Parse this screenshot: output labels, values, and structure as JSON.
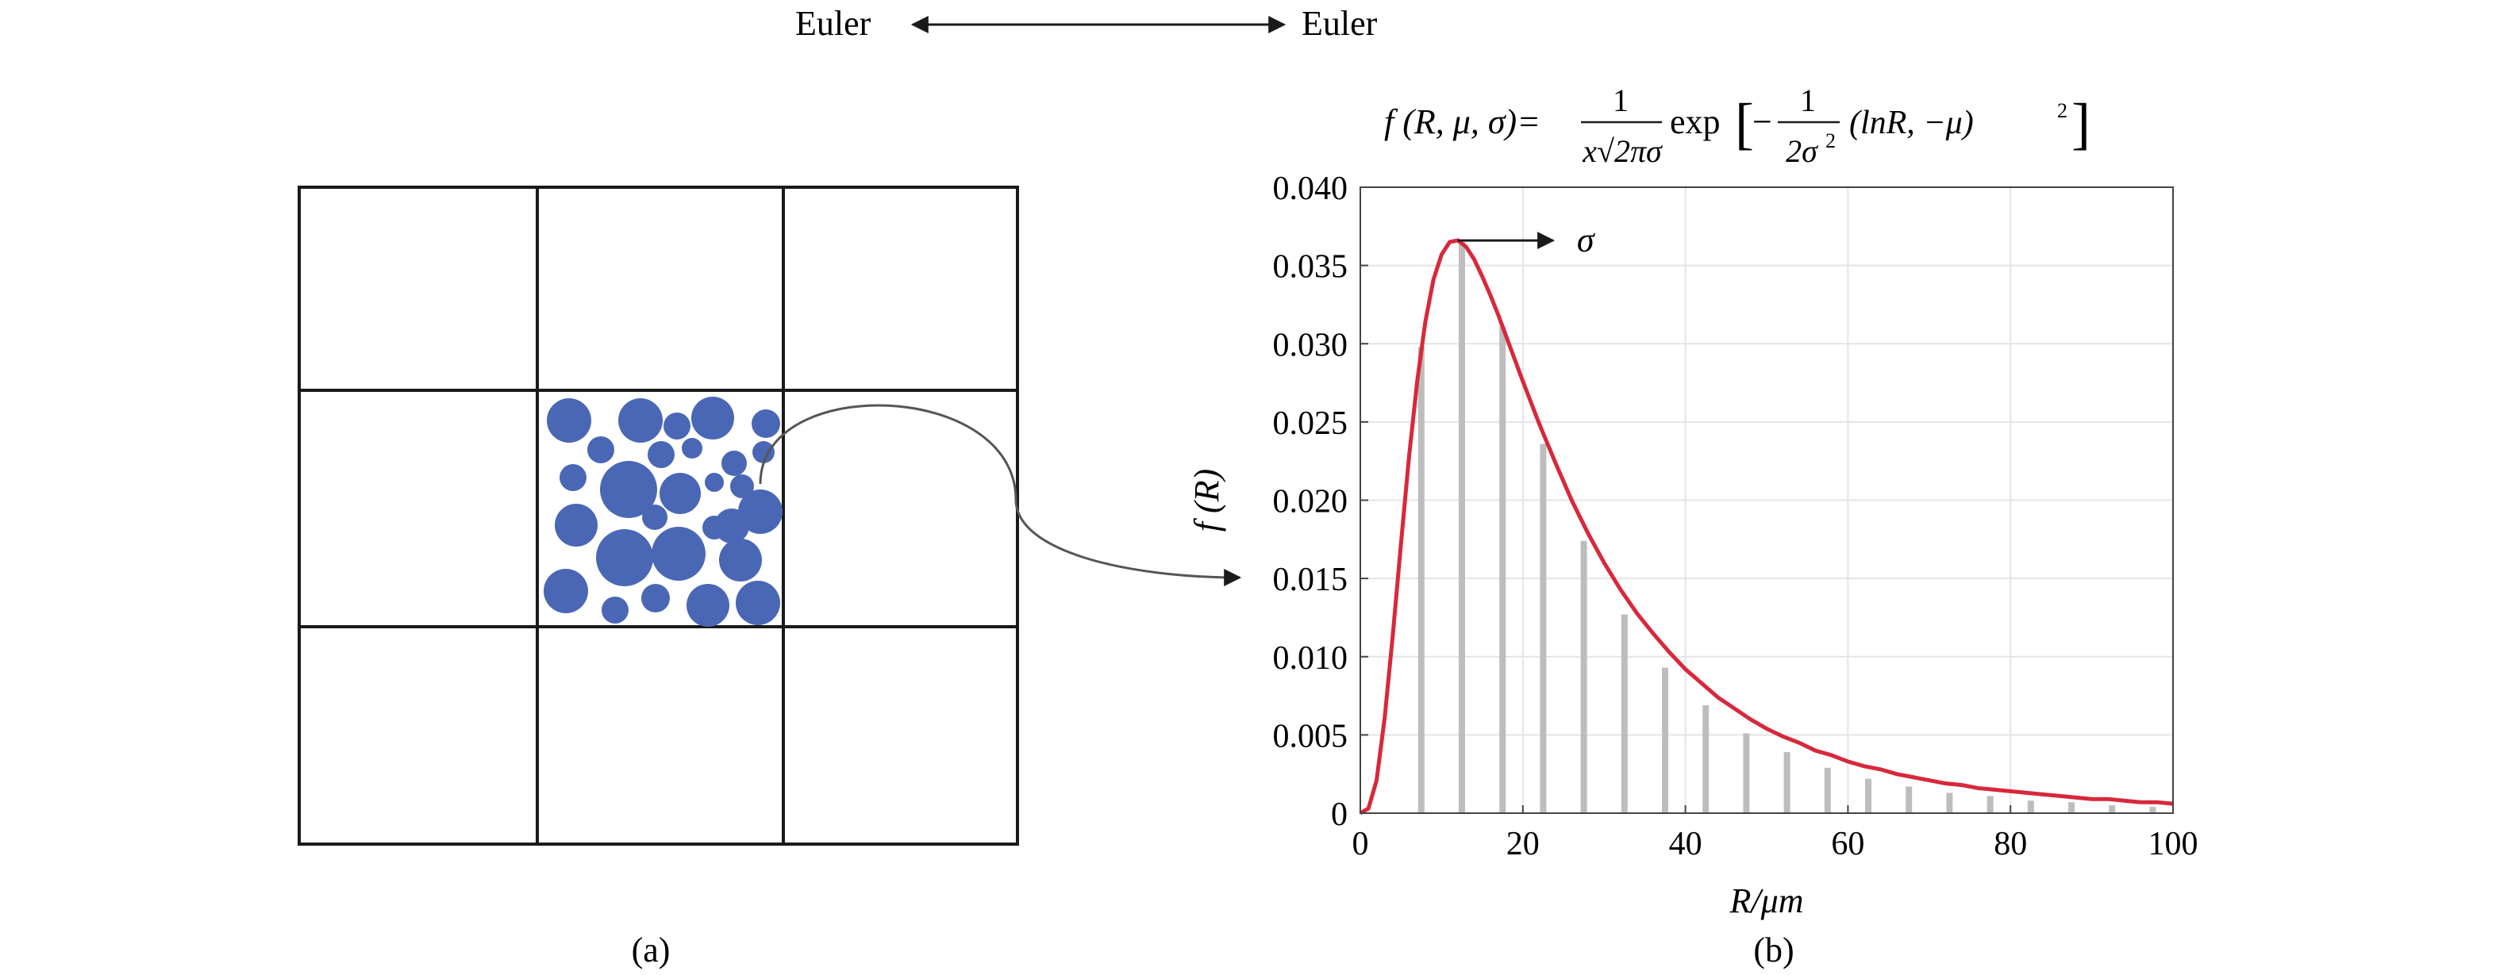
{
  "header": {
    "left_label": "Euler",
    "right_label": "Euler"
  },
  "panel_a": {
    "caption": "(a)",
    "grid": {
      "rows": 3,
      "cols": 3
    },
    "particle_color": "#4a67b5"
  },
  "panel_b": {
    "caption": "(b)",
    "formula": {
      "lhs": "f (R, μ, σ)=",
      "frac1_num": "1",
      "frac1_den": "x√2πσ",
      "exp": "exp",
      "minus": "−",
      "frac2_num": "1",
      "frac2_den": "2σ",
      "frac2_den_sup": "2",
      "tail": "(lnR, −μ)",
      "tail_sup": "2"
    },
    "sigma_label": "σ"
  },
  "chart_data": {
    "type": "line",
    "title": "",
    "xlabel": "R/μm",
    "ylabel": "f (R)",
    "xlim": [
      0,
      100
    ],
    "ylim": [
      0,
      0.04
    ],
    "x_ticks": [
      "0",
      "20",
      "40",
      "60",
      "80",
      "100"
    ],
    "y_ticks": [
      "0",
      "0.005",
      "0.010",
      "0.015",
      "0.020",
      "0.025",
      "0.030",
      "0.035",
      "0.040"
    ],
    "grid": true,
    "series": [
      {
        "color": "#d8283b",
        "x": [
          0,
          1,
          2,
          3,
          4,
          5,
          6,
          7,
          8,
          9,
          10,
          11,
          12,
          13,
          14,
          15,
          16,
          17,
          18,
          19,
          20,
          22,
          24,
          26,
          28,
          30,
          32,
          34,
          36,
          38,
          40,
          42,
          44,
          46,
          48,
          50,
          52,
          54,
          56,
          58,
          60,
          62,
          64,
          66,
          68,
          70,
          72,
          74,
          76,
          78,
          80,
          82,
          84,
          86,
          88,
          90,
          92,
          94,
          96,
          98,
          100
        ],
        "y": [
          0,
          0.0003,
          0.0021,
          0.0061,
          0.0114,
          0.0172,
          0.0228,
          0.0276,
          0.0314,
          0.0341,
          0.0357,
          0.0365,
          0.0366,
          0.0362,
          0.0354,
          0.0343,
          0.0331,
          0.0318,
          0.0304,
          0.029,
          0.0276,
          0.0249,
          0.0224,
          0.02,
          0.0179,
          0.016,
          0.0143,
          0.0128,
          0.0115,
          0.0103,
          0.0092,
          0.0083,
          0.0074,
          0.0067,
          0.006,
          0.0054,
          0.0049,
          0.0045,
          0.004,
          0.0037,
          0.0033,
          0.003,
          0.0028,
          0.0025,
          0.0023,
          0.0021,
          0.0019,
          0.0018,
          0.0016,
          0.0015,
          0.0014,
          0.0013,
          0.0012,
          0.0011,
          0.001,
          0.0009,
          0.0009,
          0.0008,
          0.0007,
          0.0007,
          0.0006
        ]
      }
    ],
    "bars": {
      "color": "#bdbdbd",
      "x": [
        7.5,
        12.5,
        17.5,
        22.5,
        27.5,
        32.5,
        37.5,
        42.5,
        47.5,
        52.5,
        57.5,
        62.5,
        67.5,
        72.5,
        77.5,
        82.5,
        87.5,
        92.5,
        97.5
      ],
      "y": [
        0.0298,
        0.0365,
        0.0311,
        0.0236,
        0.0174,
        0.0127,
        0.0093,
        0.0069,
        0.0051,
        0.0039,
        0.0029,
        0.0022,
        0.0017,
        0.0013,
        0.0011,
        0.0008,
        0.0007,
        0.0005,
        0.0004
      ]
    }
  }
}
